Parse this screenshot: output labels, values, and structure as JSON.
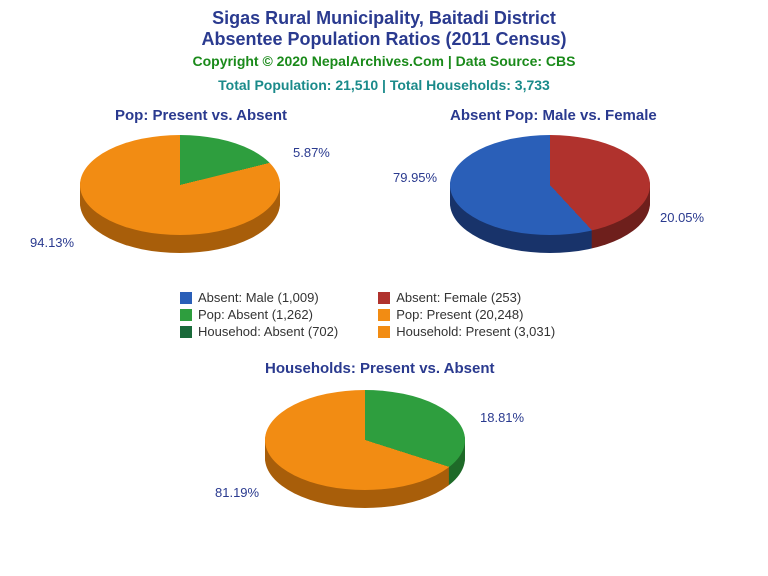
{
  "title_line1": "Sigas Rural Municipality, Baitadi District",
  "title_line2": "Absentee Population Ratios (2011 Census)",
  "title_color": "#2a3a8f",
  "copyright": "Copyright © 2020 NepalArchives.Com | Data Source: CBS",
  "copyright_color": "#1a8a1a",
  "totals": "Total Population: 21,510 | Total Households: 3,733",
  "totals_color": "#1a8a8a",
  "label_color": "#2a3a8f",
  "charts": {
    "pop": {
      "title": "Pop: Present vs. Absent",
      "slices": [
        {
          "label": "94.13%",
          "value": 94.13,
          "color": "#f28c13",
          "shadow": "#a85e0a"
        },
        {
          "label": "5.87%",
          "value": 5.87,
          "color": "#2e9e3e",
          "shadow": "#1e6a28"
        }
      ]
    },
    "gender": {
      "title": "Absent Pop: Male vs. Female",
      "slices": [
        {
          "label": "79.95%",
          "value": 79.95,
          "color": "#2a5fb8",
          "shadow": "#18336a"
        },
        {
          "label": "20.05%",
          "value": 20.05,
          "color": "#b0322d",
          "shadow": "#6e1f1c"
        }
      ]
    },
    "hh": {
      "title": "Households: Present vs. Absent",
      "slices": [
        {
          "label": "81.19%",
          "value": 81.19,
          "color": "#f28c13",
          "shadow": "#a85e0a"
        },
        {
          "label": "18.81%",
          "value": 18.81,
          "color": "#2e9e3e",
          "shadow": "#1e6a28"
        }
      ]
    }
  },
  "legend": [
    {
      "color": "#2a5fb8",
      "text": "Absent: Male (1,009)"
    },
    {
      "color": "#b0322d",
      "text": "Absent: Female (253)"
    },
    {
      "color": "#2e9e3e",
      "text": "Pop: Absent (1,262)"
    },
    {
      "color": "#f28c13",
      "text": "Pop: Present (20,248)"
    },
    {
      "color": "#1a6a3a",
      "text": "Househod: Absent (702)"
    },
    {
      "color": "#f28c13",
      "text": "Household: Present (3,031)"
    }
  ],
  "style": {
    "pie_width": 200,
    "pie_height": 100,
    "pie_depth": 18
  }
}
